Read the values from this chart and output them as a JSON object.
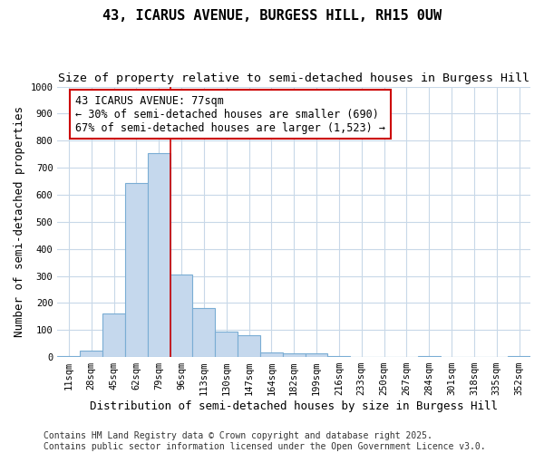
{
  "title": "43, ICARUS AVENUE, BURGESS HILL, RH15 0UW",
  "subtitle": "Size of property relative to semi-detached houses in Burgess Hill",
  "xlabel": "Distribution of semi-detached houses by size in Burgess Hill",
  "ylabel": "Number of semi-detached properties",
  "bar_labels": [
    "11sqm",
    "28sqm",
    "45sqm",
    "62sqm",
    "79sqm",
    "96sqm",
    "113sqm",
    "130sqm",
    "147sqm",
    "164sqm",
    "182sqm",
    "199sqm",
    "216sqm",
    "233sqm",
    "250sqm",
    "267sqm",
    "284sqm",
    "301sqm",
    "318sqm",
    "335sqm",
    "352sqm"
  ],
  "bar_values": [
    5,
    25,
    160,
    645,
    755,
    305,
    180,
    95,
    82,
    17,
    13,
    13,
    3,
    0,
    0,
    0,
    2,
    0,
    0,
    0,
    3
  ],
  "bar_color": "#c5d8ed",
  "bar_edge_color": "#7aadd4",
  "vline_x_index": 4.5,
  "annotation_title": "43 ICARUS AVENUE: 77sqm",
  "annotation_line1": "← 30% of semi-detached houses are smaller (690)",
  "annotation_line2": "67% of semi-detached houses are larger (1,523) →",
  "annotation_box_color": "#ffffff",
  "annotation_border_color": "#cc0000",
  "vline_color": "#cc0000",
  "ylim": [
    0,
    1000
  ],
  "yticks": [
    0,
    100,
    200,
    300,
    400,
    500,
    600,
    700,
    800,
    900,
    1000
  ],
  "fig_bg_color": "#ffffff",
  "plot_bg_color": "#ffffff",
  "grid_color": "#c8d8e8",
  "footer_line1": "Contains HM Land Registry data © Crown copyright and database right 2025.",
  "footer_line2": "Contains public sector information licensed under the Open Government Licence v3.0.",
  "title_fontsize": 11,
  "subtitle_fontsize": 9.5,
  "axis_label_fontsize": 9,
  "tick_fontsize": 7.5,
  "annotation_fontsize": 8.5,
  "footer_fontsize": 7
}
